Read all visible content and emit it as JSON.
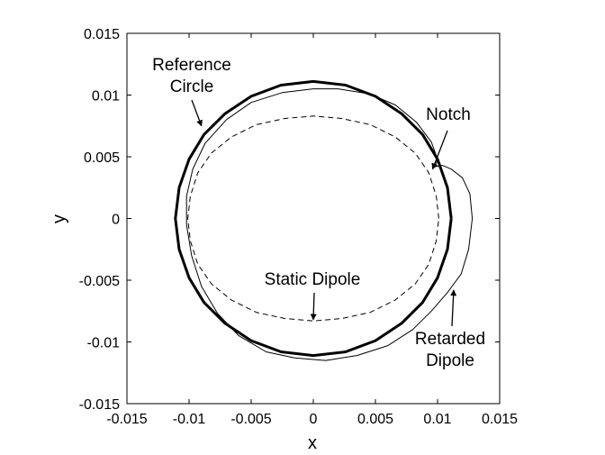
{
  "chart_data": {
    "type": "line",
    "title": "",
    "xlabel": "x",
    "ylabel": "y",
    "xlim": [
      -0.015,
      0.015
    ],
    "ylim": [
      -0.015,
      0.015
    ],
    "xticks": [
      "-0.015",
      "-0.01",
      "-0.005",
      "0",
      "0.005",
      "0.01",
      "0.015"
    ],
    "yticks": [
      "-0.015",
      "-0.01",
      "-0.005",
      "0",
      "0.005",
      "0.01",
      "0.015"
    ],
    "grid": false,
    "series": [
      {
        "name": "Reference Circle",
        "style": "thick-solid",
        "color": "#000000",
        "points": [
          [
            0.0111,
            0
          ],
          [
            0.0108,
            0.0025
          ],
          [
            0.01,
            0.0048
          ],
          [
            0.0088,
            0.0068
          ],
          [
            0.0071,
            0.0085
          ],
          [
            0.005,
            0.0099
          ],
          [
            0.0026,
            0.0108
          ],
          [
            0.0,
            0.0111
          ],
          [
            -0.0026,
            0.0108
          ],
          [
            -0.005,
            0.0099
          ],
          [
            -0.0071,
            0.0085
          ],
          [
            -0.0088,
            0.0068
          ],
          [
            -0.01,
            0.0048
          ],
          [
            -0.0108,
            0.0025
          ],
          [
            -0.0111,
            0
          ],
          [
            -0.0108,
            -0.0025
          ],
          [
            -0.01,
            -0.0048
          ],
          [
            -0.0088,
            -0.0068
          ],
          [
            -0.0071,
            -0.0085
          ],
          [
            -0.005,
            -0.0099
          ],
          [
            -0.0026,
            -0.0108
          ],
          [
            0.0,
            -0.0111
          ],
          [
            0.0026,
            -0.0108
          ],
          [
            0.005,
            -0.0099
          ],
          [
            0.0071,
            -0.0085
          ],
          [
            0.0088,
            -0.0068
          ],
          [
            0.01,
            -0.0048
          ],
          [
            0.0108,
            -0.0025
          ],
          [
            0.0111,
            0
          ]
        ]
      },
      {
        "name": "Static Dipole",
        "style": "dashed",
        "color": "#000000",
        "points": [
          [
            0.0101,
            0
          ],
          [
            0.0099,
            0.0018
          ],
          [
            0.0093,
            0.0037
          ],
          [
            0.0082,
            0.0053
          ],
          [
            0.0066,
            0.0066
          ],
          [
            0.0046,
            0.0076
          ],
          [
            0.0023,
            0.0081
          ],
          [
            0.0,
            0.0083
          ],
          [
            -0.0023,
            0.0081
          ],
          [
            -0.0046,
            0.0076
          ],
          [
            -0.0066,
            0.0066
          ],
          [
            -0.0082,
            0.0053
          ],
          [
            -0.0093,
            0.0037
          ],
          [
            -0.0099,
            0.0018
          ],
          [
            -0.0101,
            0
          ],
          [
            -0.0099,
            -0.0018
          ],
          [
            -0.0093,
            -0.0037
          ],
          [
            -0.0082,
            -0.0053
          ],
          [
            -0.0066,
            -0.0066
          ],
          [
            -0.0046,
            -0.0076
          ],
          [
            -0.0023,
            -0.0081
          ],
          [
            0.0,
            -0.0083
          ],
          [
            0.0023,
            -0.0081
          ],
          [
            0.0046,
            -0.0076
          ],
          [
            0.0066,
            -0.0066
          ],
          [
            0.0082,
            -0.0053
          ],
          [
            0.0093,
            -0.0037
          ],
          [
            0.0099,
            -0.0018
          ],
          [
            0.0101,
            0
          ]
        ]
      },
      {
        "name": "Retarded Dipole",
        "style": "thin-solid",
        "color": "#000000",
        "points": [
          [
            0.0098,
            0.0042
          ],
          [
            0.01,
            0.0048
          ],
          [
            0.0095,
            0.0062
          ],
          [
            0.0083,
            0.0078
          ],
          [
            0.0066,
            0.0092
          ],
          [
            0.0045,
            0.0101
          ],
          [
            0.002,
            0.0105
          ],
          [
            0.0,
            0.0105
          ],
          [
            -0.0025,
            0.0102
          ],
          [
            -0.005,
            0.0094
          ],
          [
            -0.007,
            0.008
          ],
          [
            -0.0087,
            0.0061
          ],
          [
            -0.0097,
            0.004
          ],
          [
            -0.0102,
            0.0018
          ],
          [
            -0.0102,
            -0.0005
          ],
          [
            -0.0098,
            -0.003
          ],
          [
            -0.009,
            -0.0055
          ],
          [
            -0.0077,
            -0.0077
          ],
          [
            -0.006,
            -0.0095
          ],
          [
            -0.0038,
            -0.0108
          ],
          [
            -0.0015,
            -0.0113
          ],
          [
            0.001,
            -0.0115
          ],
          [
            0.0035,
            -0.0111
          ],
          [
            0.006,
            -0.0103
          ],
          [
            0.008,
            -0.009
          ],
          [
            0.0095,
            -0.0075
          ],
          [
            0.0108,
            -0.006
          ],
          [
            0.0119,
            -0.0045
          ],
          [
            0.0125,
            -0.0025
          ],
          [
            0.0128,
            0.0
          ],
          [
            0.0126,
            0.002
          ],
          [
            0.012,
            0.0033
          ],
          [
            0.0111,
            0.004
          ],
          [
            0.0104,
            0.0043
          ],
          [
            0.0098,
            0.0042
          ]
        ]
      }
    ],
    "annotations": [
      {
        "id": "reference",
        "lines": [
          "Reference",
          "Circle"
        ],
        "arrow_to": [
          -0.009,
          0.0075
        ]
      },
      {
        "id": "notch",
        "lines": [
          "Notch"
        ],
        "arrow_to": [
          0.0096,
          0.004
        ]
      },
      {
        "id": "static",
        "lines": [
          "Static Dipole"
        ],
        "arrow_to": [
          0.0,
          -0.0082
        ]
      },
      {
        "id": "retarded",
        "lines": [
          "Retarded",
          "Dipole"
        ],
        "arrow_to": [
          0.0113,
          -0.0058
        ]
      }
    ]
  }
}
